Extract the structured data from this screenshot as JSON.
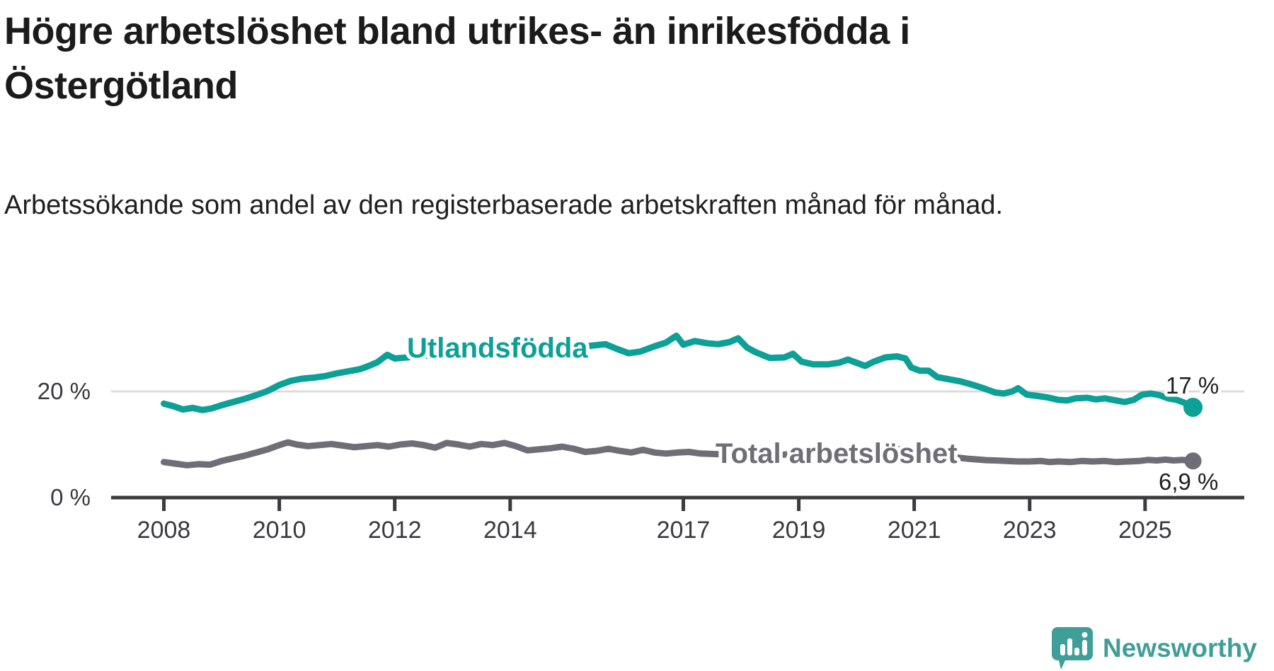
{
  "header": {
    "title": "Högre arbetslöshet bland utrikes- än inrikesfödda i Östergötland",
    "subtitle": "Arbetssökande som andel av den registerbaserade arbetskraften månad för månad."
  },
  "chart_data": {
    "type": "line",
    "grid": "horizontal-20-only",
    "legend_position": "inline-labels",
    "x_axis": {
      "ticks": [
        2008,
        2010,
        2012,
        2014,
        2017,
        2019,
        2021,
        2023,
        2025
      ],
      "range": [
        2008,
        2026.1
      ]
    },
    "y_axis": {
      "ticks": [
        {
          "value": 0,
          "label": "0 %"
        },
        {
          "value": 20,
          "label": "20 %"
        }
      ],
      "unit": "%",
      "range": [
        0,
        33
      ]
    },
    "series": [
      {
        "name": "Utlandsfödda",
        "color": "#0da096",
        "end_label": "17 %",
        "end_value": 17,
        "points": [
          [
            2008.0,
            17.7
          ],
          [
            2008.17,
            17.2
          ],
          [
            2008.33,
            16.6
          ],
          [
            2008.5,
            16.9
          ],
          [
            2008.67,
            16.5
          ],
          [
            2008.83,
            16.8
          ],
          [
            2009.0,
            17.4
          ],
          [
            2009.2,
            18.0
          ],
          [
            2009.4,
            18.6
          ],
          [
            2009.6,
            19.3
          ],
          [
            2009.8,
            20.1
          ],
          [
            2010.0,
            21.2
          ],
          [
            2010.2,
            22.0
          ],
          [
            2010.4,
            22.4
          ],
          [
            2010.6,
            22.6
          ],
          [
            2010.8,
            22.9
          ],
          [
            2011.0,
            23.4
          ],
          [
            2011.2,
            23.8
          ],
          [
            2011.4,
            24.2
          ],
          [
            2011.55,
            24.8
          ],
          [
            2011.7,
            25.5
          ],
          [
            2011.87,
            26.9
          ],
          [
            2012.0,
            26.2
          ],
          [
            2012.3,
            26.5
          ],
          [
            2012.7,
            26.9
          ],
          [
            2013.0,
            27.2
          ],
          [
            2013.3,
            27.4
          ],
          [
            2013.6,
            27.6
          ],
          [
            2013.9,
            27.4
          ],
          [
            2014.2,
            27.6
          ],
          [
            2014.5,
            27.9
          ],
          [
            2014.8,
            28.1
          ],
          [
            2015.1,
            28.3
          ],
          [
            2015.4,
            28.6
          ],
          [
            2015.65,
            28.9
          ],
          [
            2015.85,
            28.0
          ],
          [
            2016.05,
            27.2
          ],
          [
            2016.25,
            27.5
          ],
          [
            2016.5,
            28.5
          ],
          [
            2016.7,
            29.2
          ],
          [
            2016.88,
            30.5
          ],
          [
            2017.0,
            28.8
          ],
          [
            2017.2,
            29.5
          ],
          [
            2017.4,
            29.1
          ],
          [
            2017.6,
            28.9
          ],
          [
            2017.8,
            29.3
          ],
          [
            2017.95,
            30.0
          ],
          [
            2018.1,
            28.3
          ],
          [
            2018.25,
            27.4
          ],
          [
            2018.5,
            26.3
          ],
          [
            2018.75,
            26.4
          ],
          [
            2018.9,
            27.1
          ],
          [
            2019.05,
            25.6
          ],
          [
            2019.25,
            25.1
          ],
          [
            2019.5,
            25.1
          ],
          [
            2019.7,
            25.4
          ],
          [
            2019.85,
            26.0
          ],
          [
            2020.0,
            25.4
          ],
          [
            2020.15,
            24.8
          ],
          [
            2020.3,
            25.6
          ],
          [
            2020.5,
            26.4
          ],
          [
            2020.7,
            26.6
          ],
          [
            2020.85,
            26.2
          ],
          [
            2020.95,
            24.5
          ],
          [
            2021.1,
            23.9
          ],
          [
            2021.25,
            23.9
          ],
          [
            2021.4,
            22.7
          ],
          [
            2021.6,
            22.3
          ],
          [
            2021.8,
            21.9
          ],
          [
            2022.0,
            21.3
          ],
          [
            2022.2,
            20.6
          ],
          [
            2022.4,
            19.8
          ],
          [
            2022.55,
            19.6
          ],
          [
            2022.7,
            20.0
          ],
          [
            2022.8,
            20.6
          ],
          [
            2022.95,
            19.4
          ],
          [
            2023.1,
            19.2
          ],
          [
            2023.3,
            18.9
          ],
          [
            2023.5,
            18.4
          ],
          [
            2023.65,
            18.3
          ],
          [
            2023.8,
            18.7
          ],
          [
            2024.0,
            18.8
          ],
          [
            2024.15,
            18.5
          ],
          [
            2024.3,
            18.7
          ],
          [
            2024.5,
            18.3
          ],
          [
            2024.65,
            18.0
          ],
          [
            2024.8,
            18.4
          ],
          [
            2024.95,
            19.4
          ],
          [
            2025.1,
            19.6
          ],
          [
            2025.25,
            19.3
          ],
          [
            2025.4,
            18.7
          ],
          [
            2025.55,
            18.4
          ],
          [
            2025.65,
            18.0
          ],
          [
            2025.75,
            17.5
          ],
          [
            2025.83,
            17.0
          ]
        ]
      },
      {
        "name": "Total arbetslöshet",
        "color": "#6f6e76",
        "end_label": "6,9 %",
        "end_value": 6.9,
        "points": [
          [
            2008.0,
            6.7
          ],
          [
            2008.2,
            6.4
          ],
          [
            2008.4,
            6.1
          ],
          [
            2008.6,
            6.3
          ],
          [
            2008.8,
            6.2
          ],
          [
            2009.0,
            6.9
          ],
          [
            2009.2,
            7.4
          ],
          [
            2009.4,
            7.9
          ],
          [
            2009.6,
            8.5
          ],
          [
            2009.8,
            9.1
          ],
          [
            2010.0,
            9.9
          ],
          [
            2010.15,
            10.4
          ],
          [
            2010.3,
            10.0
          ],
          [
            2010.5,
            9.7
          ],
          [
            2010.7,
            9.9
          ],
          [
            2010.9,
            10.1
          ],
          [
            2011.1,
            9.8
          ],
          [
            2011.3,
            9.5
          ],
          [
            2011.5,
            9.7
          ],
          [
            2011.7,
            9.9
          ],
          [
            2011.9,
            9.6
          ],
          [
            2012.1,
            10.0
          ],
          [
            2012.3,
            10.2
          ],
          [
            2012.5,
            9.9
          ],
          [
            2012.7,
            9.4
          ],
          [
            2012.9,
            10.3
          ],
          [
            2013.1,
            10.0
          ],
          [
            2013.3,
            9.6
          ],
          [
            2013.5,
            10.1
          ],
          [
            2013.7,
            9.9
          ],
          [
            2013.9,
            10.3
          ],
          [
            2014.1,
            9.7
          ],
          [
            2014.3,
            8.9
          ],
          [
            2014.5,
            9.1
          ],
          [
            2014.7,
            9.3
          ],
          [
            2014.9,
            9.6
          ],
          [
            2015.1,
            9.2
          ],
          [
            2015.3,
            8.6
          ],
          [
            2015.5,
            8.8
          ],
          [
            2015.7,
            9.2
          ],
          [
            2015.9,
            8.8
          ],
          [
            2016.1,
            8.5
          ],
          [
            2016.3,
            9.0
          ],
          [
            2016.5,
            8.5
          ],
          [
            2016.7,
            8.3
          ],
          [
            2016.9,
            8.5
          ],
          [
            2017.1,
            8.6
          ],
          [
            2017.3,
            8.3
          ],
          [
            2017.55,
            8.2
          ],
          [
            2017.8,
            8.1
          ],
          [
            2018.0,
            8.3
          ],
          [
            2018.3,
            8.1
          ],
          [
            2018.6,
            8.0
          ],
          [
            2018.9,
            8.2
          ],
          [
            2019.2,
            8.0
          ],
          [
            2019.5,
            7.9
          ],
          [
            2019.8,
            8.2
          ],
          [
            2020.0,
            8.6
          ],
          [
            2020.3,
            9.2
          ],
          [
            2020.5,
            9.4
          ],
          [
            2020.7,
            9.2
          ],
          [
            2020.9,
            8.9
          ],
          [
            2021.1,
            8.5
          ],
          [
            2021.4,
            8.0
          ],
          [
            2021.7,
            7.6
          ],
          [
            2021.95,
            7.3
          ],
          [
            2022.25,
            7.05
          ],
          [
            2022.4,
            7.0
          ],
          [
            2022.6,
            6.9
          ],
          [
            2022.8,
            6.8
          ],
          [
            2023.0,
            6.8
          ],
          [
            2023.2,
            6.9
          ],
          [
            2023.35,
            6.7
          ],
          [
            2023.5,
            6.8
          ],
          [
            2023.7,
            6.7
          ],
          [
            2023.9,
            6.9
          ],
          [
            2024.1,
            6.8
          ],
          [
            2024.3,
            6.9
          ],
          [
            2024.5,
            6.7
          ],
          [
            2024.7,
            6.8
          ],
          [
            2024.9,
            6.9
          ],
          [
            2025.05,
            7.1
          ],
          [
            2025.2,
            7.0
          ],
          [
            2025.35,
            7.15
          ],
          [
            2025.5,
            7.0
          ],
          [
            2025.65,
            7.1
          ],
          [
            2025.83,
            6.9
          ]
        ]
      }
    ]
  },
  "branding": {
    "logo_text": "Newsworthy",
    "logo_color": "#3f9e98",
    "logo_icon": "speech-bubble-bar-chart-exclamation"
  }
}
